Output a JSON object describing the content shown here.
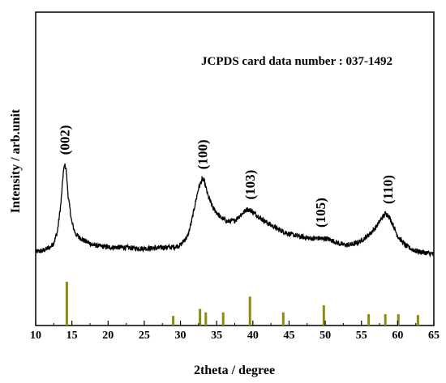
{
  "chart_data": {
    "type": "line",
    "xlabel": "2theta / degree",
    "ylabel": "Intensity / arb.unit",
    "annotation": "JCPDS card data number : 037-1492",
    "xlim": [
      10,
      65
    ],
    "xticks": [
      10,
      15,
      20,
      25,
      30,
      35,
      40,
      45,
      50,
      55,
      60,
      65
    ],
    "grid": false,
    "colors": {
      "pattern": "#000000",
      "reference": "#8b8b10"
    },
    "series": [
      {
        "x": [
          10,
          11,
          12,
          12.5,
          13,
          13.5,
          13.8,
          14.0,
          14.2,
          14.5,
          15.0,
          15.5,
          16,
          17,
          18,
          20,
          22,
          24,
          26,
          28,
          29,
          30,
          31,
          31.5,
          32,
          32.5,
          33.0,
          33.3,
          33.8,
          34.5,
          35.5,
          36.5,
          37.5,
          38.5,
          39.2,
          39.7,
          40.5,
          41.5,
          42.5,
          43.5,
          45,
          47,
          48,
          49,
          50,
          51,
          52,
          53,
          54,
          55,
          56,
          57,
          57.7,
          58.3,
          58.7,
          59.3,
          60,
          61,
          62,
          63,
          64,
          65
        ],
        "values": [
          0.16,
          0.17,
          0.2,
          0.24,
          0.34,
          0.6,
          0.86,
          0.94,
          0.9,
          0.65,
          0.42,
          0.32,
          0.29,
          0.25,
          0.22,
          0.2,
          0.2,
          0.19,
          0.19,
          0.2,
          0.2,
          0.22,
          0.3,
          0.42,
          0.58,
          0.73,
          0.81,
          0.79,
          0.66,
          0.55,
          0.47,
          0.43,
          0.44,
          0.5,
          0.54,
          0.53,
          0.49,
          0.44,
          0.4,
          0.36,
          0.32,
          0.29,
          0.28,
          0.28,
          0.28,
          0.26,
          0.23,
          0.22,
          0.23,
          0.26,
          0.31,
          0.38,
          0.45,
          0.5,
          0.49,
          0.41,
          0.3,
          0.22,
          0.18,
          0.16,
          0.15,
          0.14
        ]
      }
    ],
    "reference_lines": {
      "x": [
        14.3,
        29.0,
        32.7,
        33.5,
        35.9,
        39.6,
        44.2,
        49.8,
        56.0,
        58.3,
        60.1,
        62.8
      ],
      "values": [
        1.0,
        0.22,
        0.38,
        0.3,
        0.3,
        0.66,
        0.3,
        0.46,
        0.26,
        0.26,
        0.26,
        0.24
      ]
    },
    "peak_labels": [
      {
        "text": "(002)",
        "x": 14.0,
        "y": 0.94
      },
      {
        "text": "(100)",
        "x": 33.0,
        "y": 0.81
      },
      {
        "text": "(103)",
        "x": 39.6,
        "y": 0.54
      },
      {
        "text": "(105)",
        "x": 49.3,
        "y": 0.29
      },
      {
        "text": "(110)",
        "x": 58.6,
        "y": 0.5
      }
    ]
  }
}
